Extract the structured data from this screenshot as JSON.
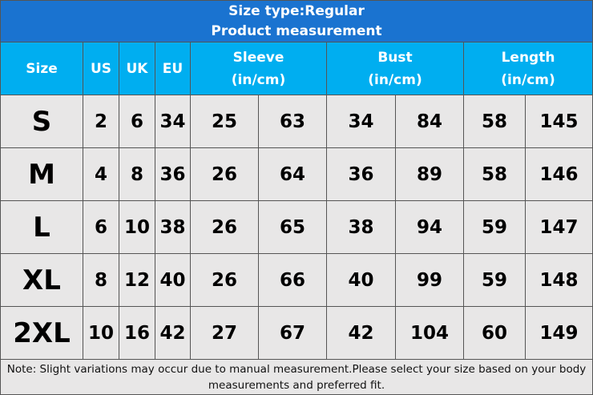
{
  "header": {
    "title": "Size type:Regular",
    "subtitle": "Product measurement"
  },
  "table": {
    "columns": [
      {
        "name": "Size"
      },
      {
        "name": "US"
      },
      {
        "name": "UK"
      },
      {
        "name": "EU"
      },
      {
        "name": "Sleeve",
        "unit": "(in/cm)"
      },
      {
        "name": "Bust",
        "unit": "(in/cm)"
      },
      {
        "name": "Length",
        "unit": "(in/cm)"
      }
    ],
    "rows": [
      [
        "S",
        2,
        6,
        34,
        25,
        63,
        34,
        84,
        58,
        145
      ],
      [
        "M",
        4,
        8,
        36,
        26,
        64,
        36,
        89,
        58,
        146
      ],
      [
        "L",
        6,
        10,
        38,
        26,
        65,
        38,
        94,
        59,
        147
      ],
      [
        "XL",
        8,
        12,
        40,
        26,
        66,
        40,
        99,
        59,
        148
      ],
      [
        "2XL",
        10,
        16,
        42,
        27,
        67,
        42,
        104,
        60,
        149
      ]
    ]
  },
  "note": "Note: Slight variations may occur due to manual measurement.Please select your size based on your body measurements and preferred fit."
}
